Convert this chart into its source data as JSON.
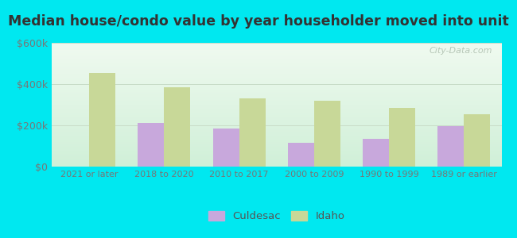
{
  "title": "Median house/condo value by year householder moved into unit",
  "categories": [
    "2021 or later",
    "2018 to 2020",
    "2010 to 2017",
    "2000 to 2009",
    "1990 to 1999",
    "1989 or earlier"
  ],
  "culdesac_values": [
    0,
    210000,
    185000,
    115000,
    135000,
    195000
  ],
  "idaho_values": [
    455000,
    385000,
    330000,
    320000,
    285000,
    255000
  ],
  "culdesac_color": "#c8a8dc",
  "idaho_color": "#c8d898",
  "background_top": "#d0f0d8",
  "background_bottom": "#f0faf0",
  "outer_background": "#00e8f0",
  "ylim": [
    0,
    600000
  ],
  "yticks": [
    0,
    200000,
    400000,
    600000
  ],
  "ytick_labels": [
    "$0",
    "$200k",
    "$400k",
    "$600k"
  ],
  "bar_width": 0.35,
  "watermark": "City-Data.com",
  "legend_culdesac": "Culdesac",
  "legend_idaho": "Idaho",
  "title_fontsize": 13,
  "tick_color": "#777777",
  "grid_color": "#c8dcc8"
}
